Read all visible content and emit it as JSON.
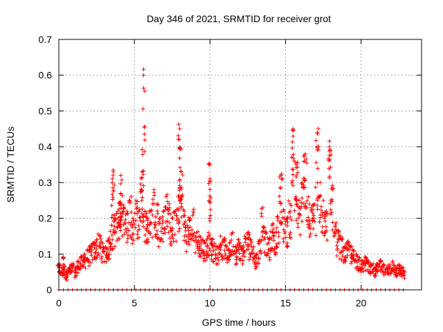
{
  "chart_data": {
    "type": "scatter",
    "title": "Day 346 of 2021, SRMTID for receiver grot",
    "xlabel": "GPS time / hours",
    "ylabel": "SRMTID / TECUs",
    "xlim": [
      0,
      24
    ],
    "ylim": [
      0,
      0.7
    ],
    "x_ticks": [
      0,
      5,
      10,
      15,
      20
    ],
    "x_tick_labels": [
      "0",
      "5",
      "10",
      "15",
      "20"
    ],
    "y_ticks": [
      0,
      0.1,
      0.2,
      0.3,
      0.4,
      0.5,
      0.6,
      0.7
    ],
    "y_tick_labels": [
      "0",
      "0.1",
      "0.2",
      "0.3",
      "0.4",
      "0.5",
      "0.6",
      "0.7"
    ],
    "grid": true,
    "marker": "plus",
    "color": "#ff0000",
    "data_end_hour": 22.9,
    "series": [
      {
        "name": "SRMTID",
        "x": [
          0.0,
          0.2,
          0.3,
          0.5,
          0.7,
          0.9,
          1.1,
          1.3,
          1.5,
          1.7,
          1.9,
          2.1,
          2.3,
          2.5,
          2.7,
          2.9,
          3.1,
          3.3,
          3.5,
          3.6,
          3.7,
          3.9,
          4.0,
          4.1,
          4.3,
          4.5,
          4.7,
          4.9,
          5.1,
          5.3,
          5.5,
          5.6,
          5.7,
          5.9,
          6.1,
          6.3,
          6.5,
          6.7,
          6.9,
          7.1,
          7.3,
          7.5,
          7.7,
          7.9,
          8.0,
          8.1,
          8.3,
          8.5,
          8.7,
          8.9,
          9.1,
          9.3,
          9.5,
          9.7,
          9.9,
          10.0,
          10.1,
          10.3,
          10.5,
          10.7,
          10.9,
          11.1,
          11.3,
          11.5,
          11.7,
          11.9,
          12.1,
          12.3,
          12.5,
          12.7,
          12.9,
          13.1,
          13.3,
          13.5,
          13.7,
          13.9,
          14.1,
          14.3,
          14.5,
          14.7,
          14.9,
          15.1,
          15.3,
          15.5,
          15.7,
          15.9,
          16.1,
          16.3,
          16.5,
          16.7,
          16.9,
          17.1,
          17.3,
          17.5,
          17.7,
          17.9,
          18.1,
          18.3,
          18.5,
          18.7,
          18.9,
          19.1,
          19.3,
          19.5,
          19.7,
          19.9,
          20.1,
          20.3,
          20.5,
          20.7,
          20.9,
          21.1,
          21.3,
          21.5,
          21.7,
          21.9,
          22.1,
          22.3,
          22.5,
          22.7,
          22.9
        ],
        "y": [
          0.07,
          0.06,
          0.09,
          0.05,
          0.06,
          0.07,
          0.06,
          0.08,
          0.09,
          0.1,
          0.11,
          0.12,
          0.13,
          0.14,
          0.15,
          0.13,
          0.12,
          0.14,
          0.18,
          0.33,
          0.2,
          0.22,
          0.24,
          0.32,
          0.23,
          0.22,
          0.25,
          0.2,
          0.24,
          0.22,
          0.33,
          0.6,
          0.22,
          0.2,
          0.22,
          0.28,
          0.24,
          0.2,
          0.22,
          0.26,
          0.24,
          0.2,
          0.22,
          0.26,
          0.45,
          0.33,
          0.22,
          0.18,
          0.2,
          0.22,
          0.16,
          0.15,
          0.14,
          0.13,
          0.16,
          0.35,
          0.14,
          0.13,
          0.12,
          0.15,
          0.14,
          0.12,
          0.13,
          0.16,
          0.12,
          0.14,
          0.12,
          0.15,
          0.16,
          0.14,
          0.12,
          0.1,
          0.14,
          0.23,
          0.16,
          0.14,
          0.18,
          0.16,
          0.2,
          0.32,
          0.22,
          0.2,
          0.24,
          0.45,
          0.35,
          0.25,
          0.3,
          0.38,
          0.26,
          0.22,
          0.24,
          0.44,
          0.3,
          0.25,
          0.22,
          0.4,
          0.28,
          0.18,
          0.16,
          0.14,
          0.12,
          0.13,
          0.12,
          0.11,
          0.1,
          0.09,
          0.08,
          0.09,
          0.08,
          0.07,
          0.06,
          0.07,
          0.08,
          0.07,
          0.06,
          0.07,
          0.08,
          0.06,
          0.07,
          0.06,
          0.05
        ]
      }
    ]
  }
}
